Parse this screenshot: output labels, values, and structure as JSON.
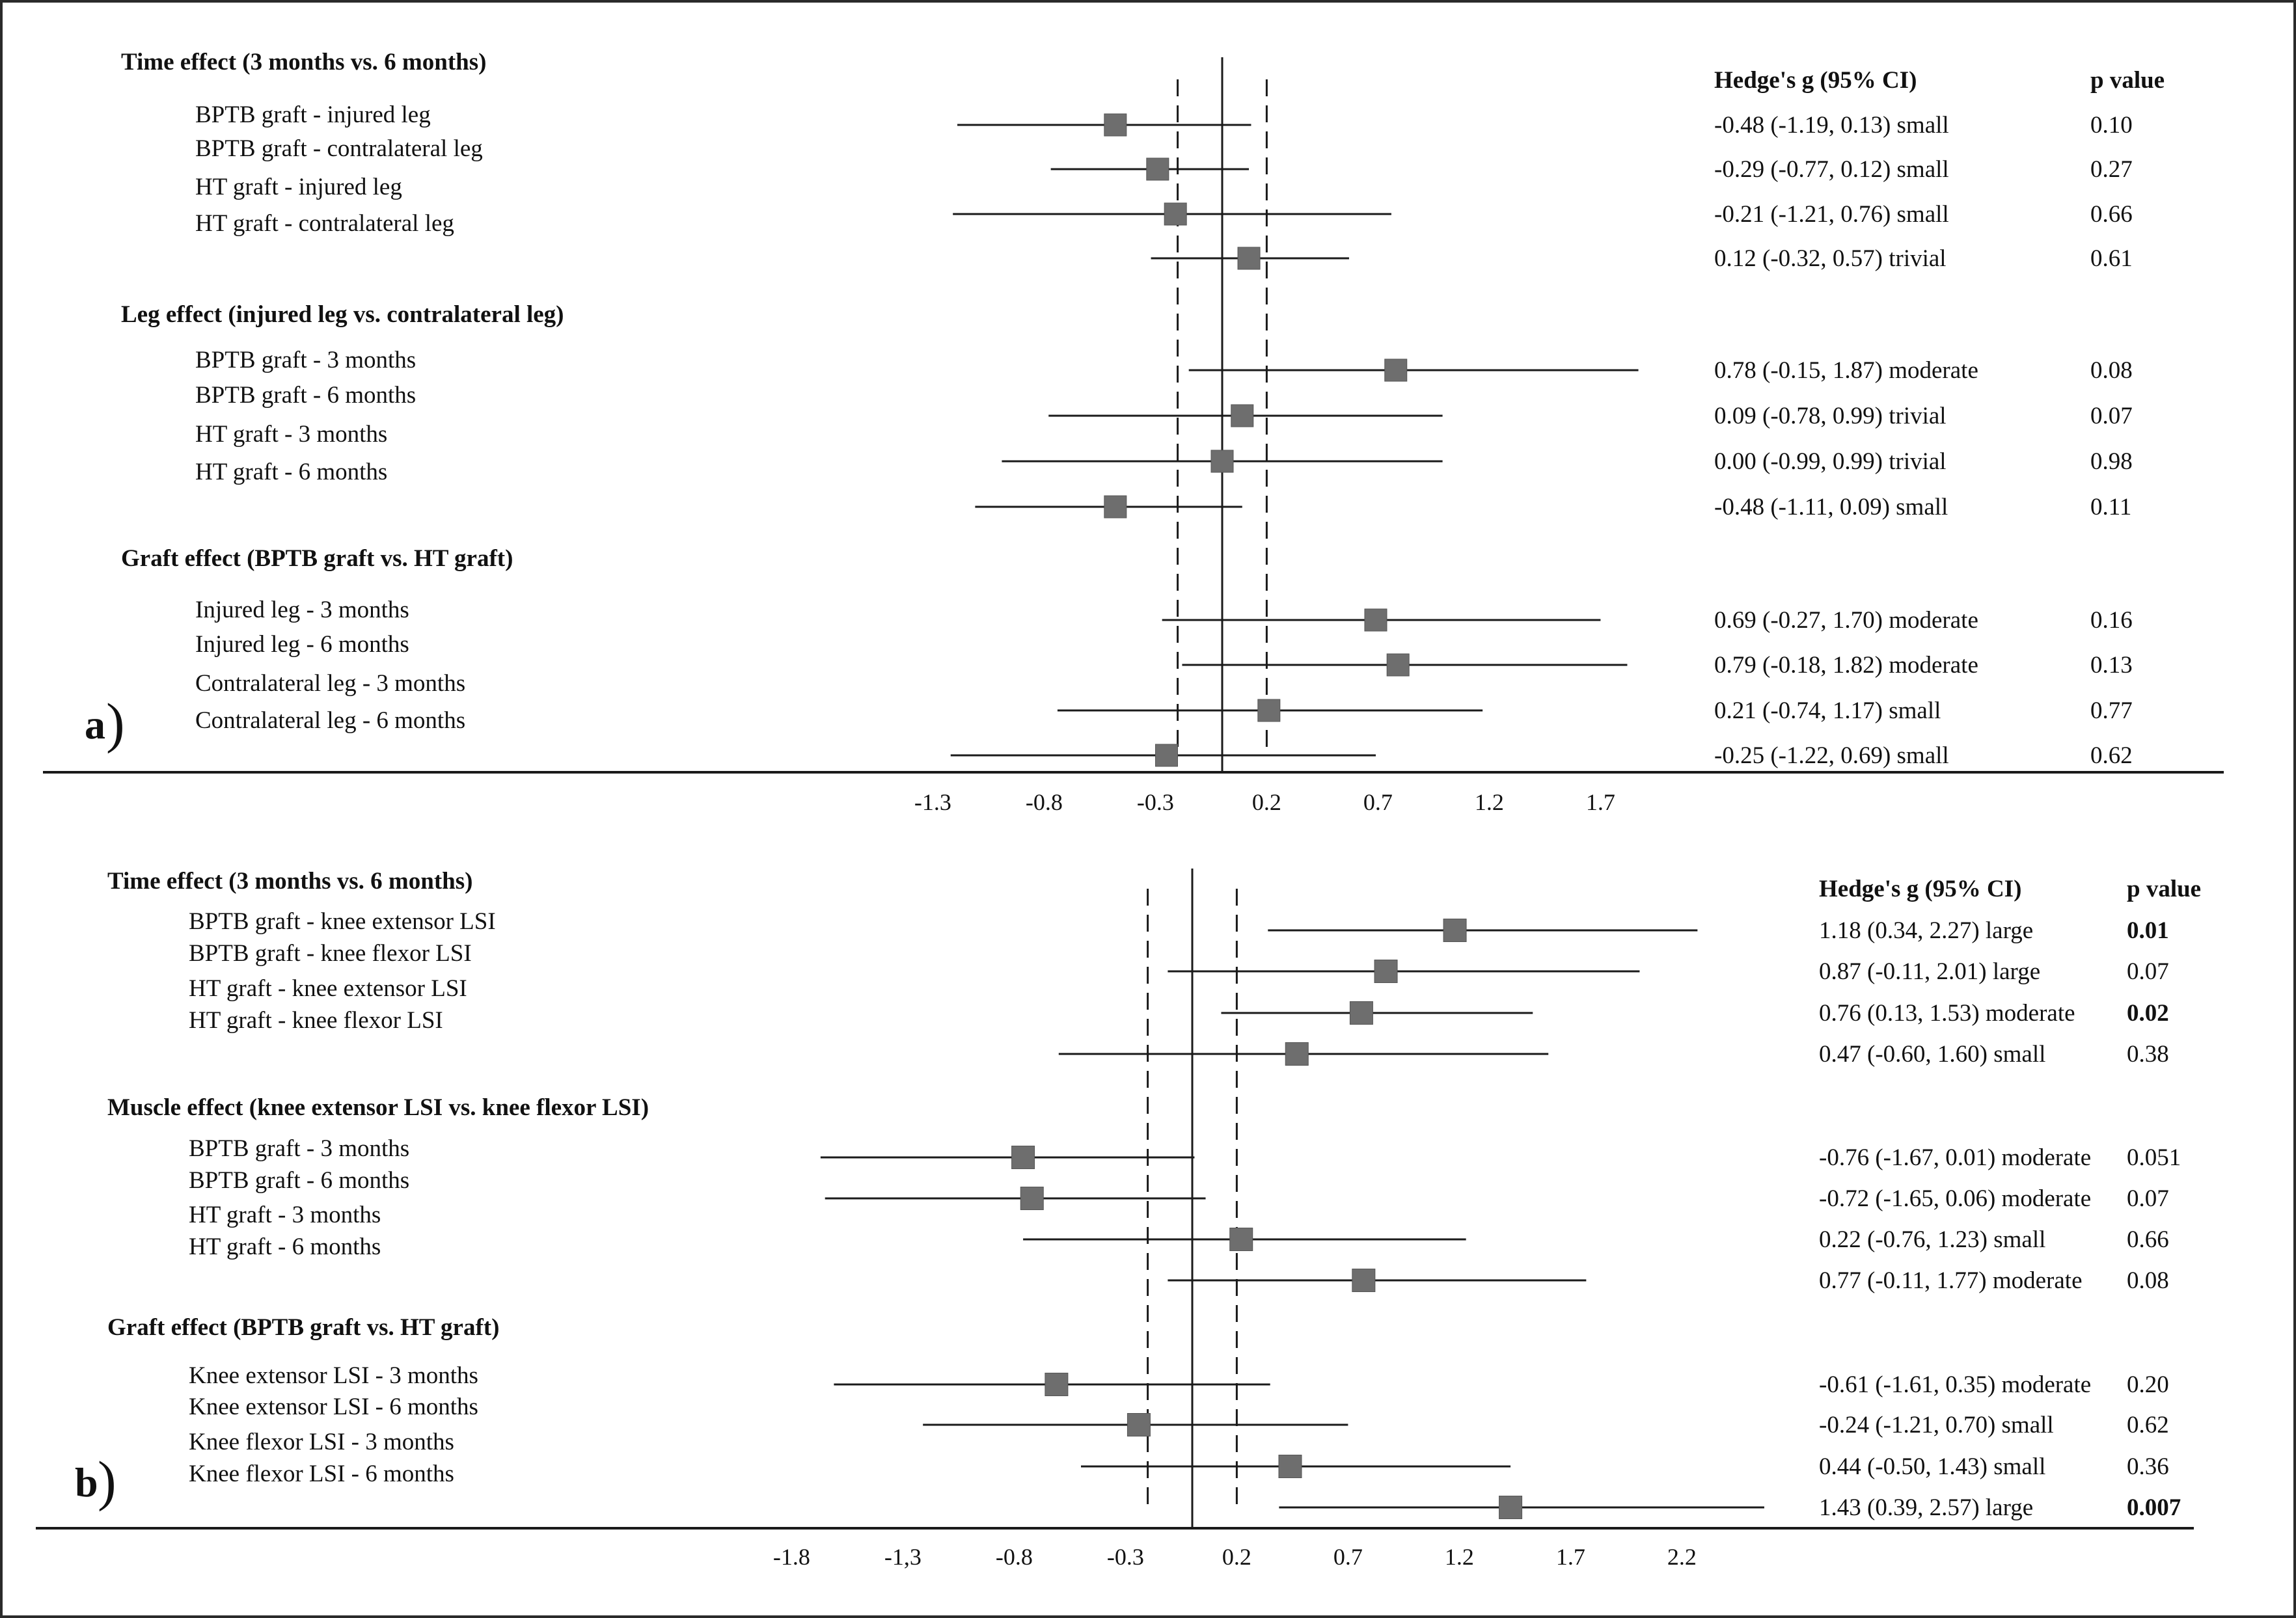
{
  "chart_data": [
    {
      "type": "forest",
      "panel_label": "a",
      "panel_paren": ")",
      "xlim": [
        -1.45,
        1.9
      ],
      "xticks": [
        "-1.3",
        "-0.8",
        "-0.3",
        "0.2",
        "0.7",
        "1.2",
        "1.7"
      ],
      "xtick_values": [
        -1.3,
        -0.8,
        -0.3,
        0.2,
        0.7,
        1.2,
        1.7
      ],
      "reference_line": 0,
      "dashed_lines": [
        -0.2,
        0.2
      ],
      "table_headers": {
        "effect": "Hedge's g (95% CI)",
        "p": "p value"
      },
      "groups": [
        {
          "title": "Time effect (3 months vs. 6 months)",
          "rows": [
            {
              "label": "BPTB graft - injured leg",
              "g": -0.48,
              "lo": -1.19,
              "hi": 0.13,
              "magnitude": "small",
              "text": "-0.48 (-1.19, 0.13) small",
              "p": "0.10",
              "p_bold": false
            },
            {
              "label": "BPTB graft - contralateral leg",
              "g": -0.29,
              "lo": -0.77,
              "hi": 0.12,
              "magnitude": "small",
              "text": "-0.29 (-0.77, 0.12) small",
              "p": "0.27",
              "p_bold": false
            },
            {
              "label": "HT graft - injured leg",
              "g": -0.21,
              "lo": -1.21,
              "hi": 0.76,
              "magnitude": "small",
              "text": "-0.21 (-1.21, 0.76) small",
              "p": "0.66",
              "p_bold": false
            },
            {
              "label": "HT graft - contralateral leg",
              "g": 0.12,
              "lo": -0.32,
              "hi": 0.57,
              "magnitude": "trivial",
              "text": "0.12 (-0.32, 0.57) trivial",
              "p": "0.61",
              "p_bold": false
            }
          ]
        },
        {
          "title": "Leg effect (injured leg vs. contralateral leg)",
          "rows": [
            {
              "label": "BPTB graft - 3 months",
              "g": 0.78,
              "lo": -0.15,
              "hi": 1.87,
              "magnitude": "moderate",
              "text": "0.78 (-0.15, 1.87) moderate",
              "p": "0.08",
              "p_bold": false
            },
            {
              "label": "BPTB graft - 6 months",
              "g": 0.09,
              "lo": -0.78,
              "hi": 0.99,
              "magnitude": "trivial",
              "text": "0.09 (-0.78, 0.99) trivial",
              "p": "0.07",
              "p_bold": false
            },
            {
              "label": "HT graft - 3 months",
              "g": 0.0,
              "lo": -0.99,
              "hi": 0.99,
              "magnitude": "trivial",
              "text": "0.00 (-0.99, 0.99) trivial",
              "p": "0.98",
              "p_bold": false
            },
            {
              "label": "HT graft - 6 months",
              "g": -0.48,
              "lo": -1.11,
              "hi": 0.09,
              "magnitude": "small",
              "text": "-0.48 (-1.11, 0.09) small",
              "p": "0.11",
              "p_bold": false
            }
          ]
        },
        {
          "title": "Graft effect (BPTB graft vs. HT graft)",
          "rows": [
            {
              "label": "Injured leg - 3 months",
              "g": 0.69,
              "lo": -0.27,
              "hi": 1.7,
              "magnitude": "moderate",
              "text": "0.69 (-0.27, 1.70) moderate",
              "p": "0.16",
              "p_bold": false
            },
            {
              "label": "Injured leg - 6 months",
              "g": 0.79,
              "lo": -0.18,
              "hi": 1.82,
              "magnitude": "moderate",
              "text": "0.79 (-0.18, 1.82) moderate",
              "p": "0.13",
              "p_bold": false
            },
            {
              "label": "Contralateral leg - 3 months",
              "g": 0.21,
              "lo": -0.74,
              "hi": 1.17,
              "magnitude": "small",
              "text": "0.21 (-0.74, 1.17) small",
              "p": "0.77",
              "p_bold": false
            },
            {
              "label": "Contralateral leg - 6 months",
              "g": -0.25,
              "lo": -1.22,
              "hi": 0.69,
              "magnitude": "small",
              "text": "-0.25 (-1.22, 0.69) small",
              "p": "0.62",
              "p_bold": false
            }
          ]
        }
      ]
    },
    {
      "type": "forest",
      "panel_label": "b",
      "panel_paren": ")",
      "xlim": [
        -1.95,
        2.7
      ],
      "xticks": [
        "-1.8",
        "-1,3",
        "-0.8",
        "-0.3",
        "0.2",
        "0.7",
        "1.2",
        "1.7",
        "2.2"
      ],
      "xtick_values": [
        -1.8,
        -1.3,
        -0.8,
        -0.3,
        0.2,
        0.7,
        1.2,
        1.7,
        2.2
      ],
      "reference_line": 0,
      "dashed_lines": [
        -0.2,
        0.2
      ],
      "table_headers": {
        "effect": "Hedge's g (95% CI)",
        "p": "p value"
      },
      "groups": [
        {
          "title": "Time effect (3 months vs. 6 months)",
          "rows": [
            {
              "label": "BPTB graft - knee extensor LSI",
              "g": 1.18,
              "lo": 0.34,
              "hi": 2.27,
              "magnitude": "large",
              "text": "1.18 (0.34, 2.27) large",
              "p": "0.01",
              "p_bold": true
            },
            {
              "label": "BPTB graft - knee flexor LSI",
              "g": 0.87,
              "lo": -0.11,
              "hi": 2.01,
              "magnitude": "large",
              "text": "0.87 (-0.11, 2.01) large",
              "p": "0.07",
              "p_bold": false
            },
            {
              "label": "HT graft - knee extensor LSI",
              "g": 0.76,
              "lo": 0.13,
              "hi": 1.53,
              "magnitude": "moderate",
              "text": "0.76 (0.13, 1.53) moderate",
              "p": "0.02",
              "p_bold": true
            },
            {
              "label": "HT graft - knee flexor LSI",
              "g": 0.47,
              "lo": -0.6,
              "hi": 1.6,
              "magnitude": "small",
              "text": "0.47 (-0.60, 1.60) small",
              "p": "0.38",
              "p_bold": false
            }
          ]
        },
        {
          "title": "Muscle effect (knee extensor LSI vs. knee flexor LSI)",
          "rows": [
            {
              "label": "BPTB graft - 3 months",
              "g": -0.76,
              "lo": -1.67,
              "hi": 0.01,
              "magnitude": "moderate",
              "text": "-0.76 (-1.67, 0.01) moderate",
              "p": "0.051",
              "p_bold": false
            },
            {
              "label": "BPTB graft - 6 months",
              "g": -0.72,
              "lo": -1.65,
              "hi": 0.06,
              "magnitude": "moderate",
              "text": "-0.72 (-1.65, 0.06) moderate",
              "p": "0.07",
              "p_bold": false
            },
            {
              "label": "HT graft - 3 months",
              "g": 0.22,
              "lo": -0.76,
              "hi": 1.23,
              "magnitude": "small",
              "text": "0.22 (-0.76, 1.23) small",
              "p": "0.66",
              "p_bold": false
            },
            {
              "label": "HT graft - 6 months",
              "g": 0.77,
              "lo": -0.11,
              "hi": 1.77,
              "magnitude": "moderate",
              "text": "0.77 (-0.11, 1.77) moderate",
              "p": "0.08",
              "p_bold": false
            }
          ]
        },
        {
          "title": "Graft effect (BPTB graft vs. HT graft)",
          "rows": [
            {
              "label": "Knee extensor LSI - 3 months",
              "g": -0.61,
              "lo": -1.61,
              "hi": 0.35,
              "magnitude": "moderate",
              "text": "-0.61 (-1.61, 0.35) moderate",
              "p": "0.20",
              "p_bold": false
            },
            {
              "label": "Knee extensor LSI - 6 months",
              "g": -0.24,
              "lo": -1.21,
              "hi": 0.7,
              "magnitude": "small",
              "text": "-0.24 (-1.21, 0.70) small",
              "p": "0.62",
              "p_bold": false
            },
            {
              "label": "Knee flexor LSI - 3 months",
              "g": 0.44,
              "lo": -0.5,
              "hi": 1.43,
              "magnitude": "small",
              "text": "0.44 (-0.50, 1.43) small",
              "p": "0.36",
              "p_bold": false
            },
            {
              "label": "Knee flexor LSI - 6 months",
              "g": 1.43,
              "lo": 0.39,
              "hi": 2.57,
              "magnitude": "large",
              "text": "1.43 (0.39, 2.57) large",
              "p": "0.007",
              "p_bold": true
            }
          ]
        }
      ]
    }
  ],
  "colors": {
    "marker": "#6e6e6e",
    "line": "#1a1a1a",
    "border": "#2b2b2b"
  }
}
